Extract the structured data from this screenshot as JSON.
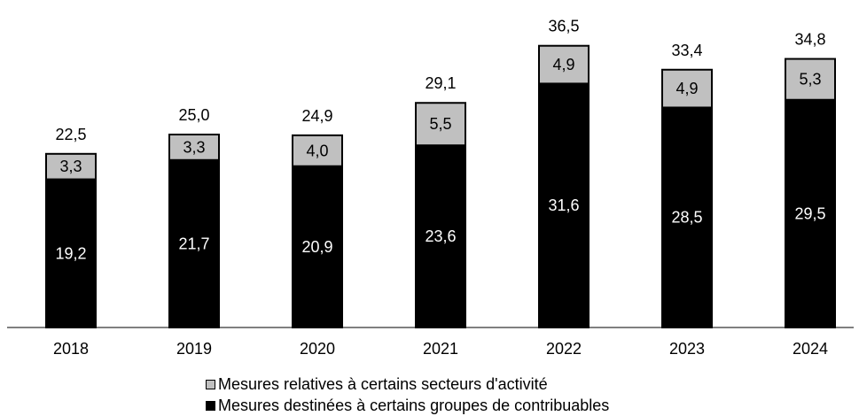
{
  "chart_data": {
    "type": "bar",
    "stacked": true,
    "categories": [
      "2018",
      "2019",
      "2020",
      "2021",
      "2022",
      "2023",
      "2024"
    ],
    "series": [
      {
        "name": "Mesures destinées à certains groupes de contribuables",
        "values": [
          19.2,
          21.7,
          20.9,
          23.6,
          31.6,
          28.5,
          29.5
        ],
        "labels": [
          "19,2",
          "21,7",
          "20,9",
          "23,6",
          "31,6",
          "28,5",
          "29,5"
        ],
        "color": "#000000",
        "label_color": "#ffffff"
      },
      {
        "name": "Mesures relatives à certains secteurs d'activité",
        "values": [
          3.3,
          3.3,
          4.0,
          5.5,
          4.9,
          4.9,
          5.3
        ],
        "labels": [
          "3,3",
          "3,3",
          "4,0",
          "5,5",
          "4,9",
          "4,9",
          "5,3"
        ],
        "color": "#c0c0c0",
        "label_color": "#000000"
      }
    ],
    "totals": [
      22.5,
      25.0,
      24.9,
      29.1,
      36.5,
      33.4,
      34.8
    ],
    "total_labels": [
      "22,5",
      "25,0",
      "24,9",
      "29,1",
      "36,5",
      "33,4",
      "34,8"
    ],
    "ylim": [
      0,
      37
    ],
    "grid": false,
    "legend_placement": "bottom"
  },
  "legend": {
    "items": [
      {
        "label": "Mesures relatives à certains secteurs d'activité",
        "color": "#c0c0c0"
      },
      {
        "label": "Mesures destinées à certains groupes de contribuables",
        "color": "#000000"
      }
    ]
  }
}
